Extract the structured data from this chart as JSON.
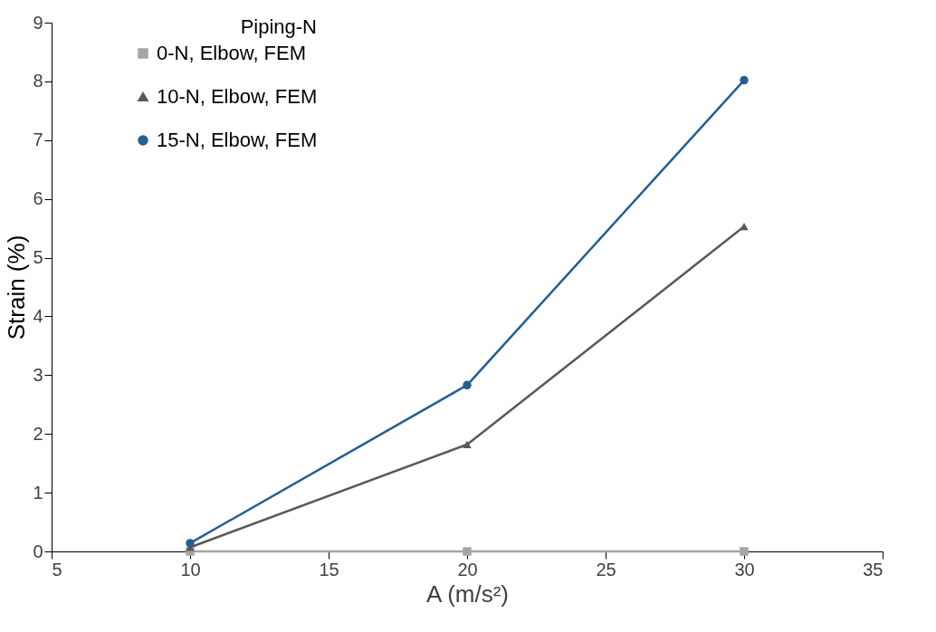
{
  "chart_data": {
    "type": "line",
    "xlabel": "A (m/s²)",
    "ylabel": "Strain (%)",
    "legend_title": "Piping-N",
    "x": [
      10,
      20,
      30
    ],
    "series": [
      {
        "name": "0-N, Elbow, FEM",
        "color": "#a5a5a5",
        "marker": "square",
        "values": [
          0,
          0,
          0
        ]
      },
      {
        "name": "10-N, Elbow, FEM",
        "color": "#595959",
        "marker": "triangle",
        "values": [
          0.07,
          1.82,
          5.53
        ]
      },
      {
        "name": "15-N, Elbow, FEM",
        "color": "#255e91",
        "marker": "circle",
        "values": [
          0.14,
          2.83,
          8.02
        ]
      }
    ],
    "xlim": [
      5,
      35
    ],
    "xticks": [
      5,
      10,
      15,
      20,
      25,
      30,
      35
    ],
    "ylim": [
      0,
      9
    ],
    "yticks": [
      0,
      1,
      2,
      3,
      4,
      5,
      6,
      7,
      8,
      9
    ],
    "grid": false,
    "legend": "top left",
    "line_style": "solid"
  }
}
